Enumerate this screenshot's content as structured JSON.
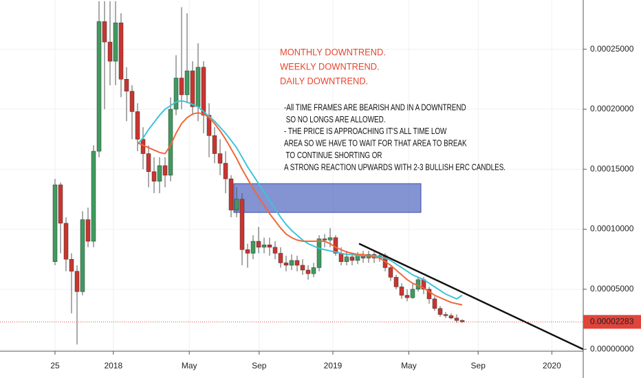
{
  "chart_data": {
    "type": "candlestick",
    "ylim": [
      -1.6e-06,
      0.000291
    ],
    "yticks": [
      {
        "value": 0,
        "label": "0.00000000"
      },
      {
        "value": 5e-05,
        "label": "0.00005000"
      },
      {
        "value": 0.0001,
        "label": "0.00010000"
      },
      {
        "value": 0.00015,
        "label": "0.00015000"
      },
      {
        "value": 0.0002,
        "label": "0.00020000"
      },
      {
        "value": 0.00025,
        "label": "0.00025000"
      }
    ],
    "xlim": [
      -10,
      96
    ],
    "xticks": [
      {
        "value": 0,
        "label": "25"
      },
      {
        "value": 10.6,
        "label": "2018"
      },
      {
        "value": 24.4,
        "label": "May"
      },
      {
        "value": 37.1,
        "label": "Sep"
      },
      {
        "value": 50.5,
        "label": "2019"
      },
      {
        "value": 64.3,
        "label": "May"
      },
      {
        "value": 76.9,
        "label": "Sep"
      },
      {
        "value": 90.3,
        "label": "2020"
      }
    ],
    "up_color": "#3f9a5e",
    "down_color": "#c8352f",
    "grid": true,
    "ohlc": [
      [
        7.3e-05,
        0.000142,
        7e-05,
        0.000137
      ],
      [
        0.000137,
        0.000139,
        8e-05,
        0.000105
      ],
      [
        0.000105,
        0.00011,
        6.5e-05,
        7.5e-05
      ],
      [
        7.5e-05,
        8e-05,
        3e-05,
        6.5e-05
      ],
      [
        6.5e-05,
        7e-05,
        4e-06,
        4.8e-05
      ],
      [
        4.8e-05,
        0.000115,
        4.5e-05,
        0.000108
      ],
      [
        0.000108,
        0.000118,
        8.5e-05,
        9e-05
      ],
      [
        9e-05,
        0.00017,
        8.5e-05,
        0.000165
      ],
      [
        0.000165,
        0.00029,
        0.00016,
        0.000273
      ],
      [
        0.000273,
        0.00029,
        0.0002,
        0.000256
      ],
      [
        0.000256,
        0.00029,
        0.00022,
        0.00024
      ],
      [
        0.00024,
        0.00029,
        0.00022,
        0.000272
      ],
      [
        0.000272,
        0.00028,
        0.00021,
        0.000225
      ],
      [
        0.000225,
        0.000235,
        0.00019,
        0.000215
      ],
      [
        0.000215,
        0.00022,
        0.000175,
        0.000198
      ],
      [
        0.000198,
        0.000205,
        0.000165,
        0.000175
      ],
      [
        0.000175,
        0.000185,
        0.00015,
        0.000163
      ],
      [
        0.000163,
        0.00017,
        0.000135,
        0.000148
      ],
      [
        0.000148,
        0.00016,
        0.00013,
        0.00014
      ],
      [
        0.00014,
        0.00016,
        0.00013,
        0.000153
      ],
      [
        0.000153,
        0.00016,
        0.000135,
        0.000145
      ],
      [
        0.000145,
        0.00021,
        0.00014,
        0.0002
      ],
      [
        0.0002,
        0.000245,
        0.000195,
        0.000226
      ],
      [
        0.000226,
        0.000285,
        0.0002,
        0.000212
      ],
      [
        0.000212,
        0.00028,
        0.000205,
        0.000232
      ],
      [
        0.000232,
        0.00024,
        0.000195,
        0.000202
      ],
      [
        0.000202,
        0.000255,
        0.00019,
        0.000235
      ],
      [
        0.000235,
        0.00024,
        0.00018,
        0.000195
      ],
      [
        0.000195,
        0.000205,
        0.00016,
        0.000178
      ],
      [
        0.000178,
        0.000185,
        0.000155,
        0.000163
      ],
      [
        0.000163,
        0.000175,
        0.000145,
        0.000155
      ],
      [
        0.000155,
        0.000165,
        0.00013,
        0.000142
      ],
      [
        0.000142,
        0.000145,
        0.00011,
        0.000116
      ],
      [
        0.000116,
        0.000135,
        0.00011,
        0.000125
      ],
      [
        0.000125,
        0.00013,
        7e-05,
        8.3e-05
      ],
      [
        8.3e-05,
        8.8e-05,
        6.8e-05,
        8e-05
      ],
      [
        8e-05,
        9.5e-05,
        7.5e-05,
        9e-05
      ],
      [
        9e-05,
        0.000102,
        8e-05,
        8.5e-05
      ],
      [
        8.5e-05,
        9.3e-05,
        8e-05,
        8.7e-05
      ],
      [
        8.7e-05,
        9.3e-05,
        7.8e-05,
        8.5e-05
      ],
      [
        8.5e-05,
        9e-05,
        7.5e-05,
        8e-05
      ],
      [
        8e-05,
        8.5e-05,
        6.8e-05,
        7.2e-05
      ],
      [
        7.2e-05,
        7.8e-05,
        6.5e-05,
        7e-05
      ],
      [
        7e-05,
        7.9e-05,
        6.6e-05,
        7.4e-05
      ],
      [
        7.4e-05,
        7.8e-05,
        6.5e-05,
        7e-05
      ],
      [
        7e-05,
        7.5e-05,
        6.2e-05,
        6.6e-05
      ],
      [
        6.6e-05,
        7e-05,
        5.8e-05,
        6.3e-05
      ],
      [
        6.3e-05,
        7.2e-05,
        6e-05,
        6.8e-05
      ],
      [
        6.8e-05,
        9.5e-05,
        6.5e-05,
        9.2e-05
      ],
      [
        9.2e-05,
        9.6e-05,
        8.5e-05,
        9.1e-05
      ],
      [
        9.1e-05,
        0.000101,
        8.5e-05,
        9.3e-05
      ],
      [
        9.3e-05,
        9.5e-05,
        7.8e-05,
        8e-05
      ],
      [
        8e-05,
        8.5e-05,
        7e-05,
        7.3e-05
      ],
      [
        7.3e-05,
        8.2e-05,
        7e-05,
        7.7e-05
      ],
      [
        7.7e-05,
        8e-05,
        7e-05,
        7.4e-05
      ],
      [
        7.4e-05,
        8.1e-05,
        7.1e-05,
        7.8e-05
      ],
      [
        7.8e-05,
        8.2e-05,
        7.2e-05,
        7.6e-05
      ],
      [
        7.6e-05,
        8.2e-05,
        7.2e-05,
        7.9e-05
      ],
      [
        7.9e-05,
        8.1e-05,
        7.2e-05,
        7.6e-05
      ],
      [
        7.6e-05,
        8.1e-05,
        7.3e-05,
        7.8e-05
      ],
      [
        7.8e-05,
        8e-05,
        6.5e-05,
        6.8e-05
      ],
      [
        6.8e-05,
        7e-05,
        5.7e-05,
        6e-05
      ],
      [
        6e-05,
        6.2e-05,
        5e-05,
        5.2e-05
      ],
      [
        5.2e-05,
        5.5e-05,
        4.2e-05,
        4.5e-05
      ],
      [
        4.5e-05,
        5e-05,
        4e-05,
        4.3e-05
      ],
      [
        4.3e-05,
        5.5e-05,
        4.2e-05,
        5e-05
      ],
      [
        5e-05,
        6e-05,
        4.8e-05,
        5.8e-05
      ],
      [
        5.8e-05,
        6e-05,
        4.6e-05,
        5e-05
      ],
      [
        5e-05,
        5.2e-05,
        3.8e-05,
        4.2e-05
      ],
      [
        4.2e-05,
        4.4e-05,
        3.2e-05,
        3.4e-05
      ],
      [
        3.4e-05,
        3.6e-05,
        2.7e-05,
        2.9e-05
      ],
      [
        2.9e-05,
        3.1e-05,
        2.6e-05,
        2.8e-05
      ],
      [
        2.8e-05,
        3e-05,
        2.5e-05,
        2.6e-05
      ],
      [
        2.6e-05,
        2.9e-05,
        2.2e-05,
        2.4e-05
      ],
      [
        2.4e-05,
        2.5e-05,
        2.2e-05,
        2.283e-05
      ]
    ],
    "series": [
      {
        "color": "#3cc4d8",
        "values": [
          null,
          null,
          null,
          null,
          null,
          null,
          null,
          null,
          null,
          null,
          null,
          null,
          null,
          null,
          null,
          0.000171,
          0.000176,
          0.000183,
          0.000189,
          0.000195,
          0.0002,
          0.000203,
          0.000206,
          0.000207,
          0.000206,
          0.000204,
          0.000202,
          0.000198,
          0.000194,
          0.00019,
          0.000185,
          0.00018,
          0.000174,
          0.000168,
          0.00016,
          0.000152,
          0.000145,
          0.000138,
          0.000131,
          0.000124,
          0.000117,
          0.00011,
          0.000104,
          9.9e-05,
          9.5e-05,
          9.1e-05,
          8.8e-05,
          8.6e-05,
          8.4e-05,
          8.3e-05,
          8.2e-05,
          8.1e-05,
          8e-05,
          7.9e-05,
          7.9e-05,
          7.8e-05,
          7.8e-05,
          7.8e-05,
          7.8e-05,
          7.7e-05,
          7.6e-05,
          7.4e-05,
          7.1e-05,
          6.8e-05,
          6.5e-05,
          6.2e-05,
          6e-05,
          5.8e-05,
          5.5e-05,
          5.2e-05,
          4.9e-05,
          4.6e-05,
          4.4e-05,
          4.2e-05,
          4.5e-05
        ]
      },
      {
        "color": "#f0673a",
        "values": [
          null,
          null,
          null,
          null,
          null,
          null,
          null,
          null,
          null,
          null,
          null,
          null,
          null,
          null,
          null,
          0.000172,
          0.00017,
          0.000168,
          0.000166,
          0.000164,
          0.000163,
          0.00017,
          0.00018,
          0.000188,
          0.000193,
          0.000196,
          0.000197,
          0.000196,
          0.000193,
          0.000188,
          0.000182,
          0.000175,
          0.000167,
          0.000159,
          0.00015,
          0.000142,
          0.000134,
          0.000127,
          0.00012,
          0.000113,
          0.000107,
          0.000101,
          9.6e-05,
          9.3e-05,
          9.1e-05,
          9e-05,
          9e-05,
          9e-05,
          9e-05,
          9e-05,
          8.8e-05,
          8.5e-05,
          8.3e-05,
          8.1e-05,
          8e-05,
          7.9e-05,
          7.9e-05,
          7.8e-05,
          7.7e-05,
          7.6e-05,
          7.3e-05,
          7e-05,
          6.6e-05,
          6.2e-05,
          5.8e-05,
          5.5e-05,
          5.3e-05,
          5.1e-05,
          4.8e-05,
          4.5e-05,
          4.3e-05,
          4.1e-05,
          3.9e-05,
          3.8e-05,
          3.7e-05
        ]
      }
    ],
    "trendline": {
      "x": [
        55.25,
        96
      ],
      "y": [
        8.8e-05,
        0
      ],
      "color": "#111111"
    },
    "zone": {
      "x": [
        32.5,
        66.5
      ],
      "y": [
        0.000114,
        0.000138
      ],
      "color": "#5b6fc2"
    },
    "last_price": {
      "value": 2.283e-05,
      "label": "0.00002283",
      "color": "#e0443a"
    },
    "notes_red": [
      "MONTHLY DOWNTREND.",
      "WEEKLY DOWNTREND.",
      "DAILY DOWNTREND."
    ],
    "notes_black": [
      "-All TIME FRAMES ARE BEARISH AND IN A DOWNTREND",
      " SO NO LONGS ARE ALLOWED.",
      "- THE PRICE IS APPROACHING IT'S ALL TIME LOW",
      "AREA SO WE HAVE TO WAIT FOR THAT AREA TO BREAK",
      " TO CONTINUE SHORTING OR",
      "A STRONG REACTION UPWARDS WITH 2-3 BULLISH ERC CANDLES."
    ]
  }
}
